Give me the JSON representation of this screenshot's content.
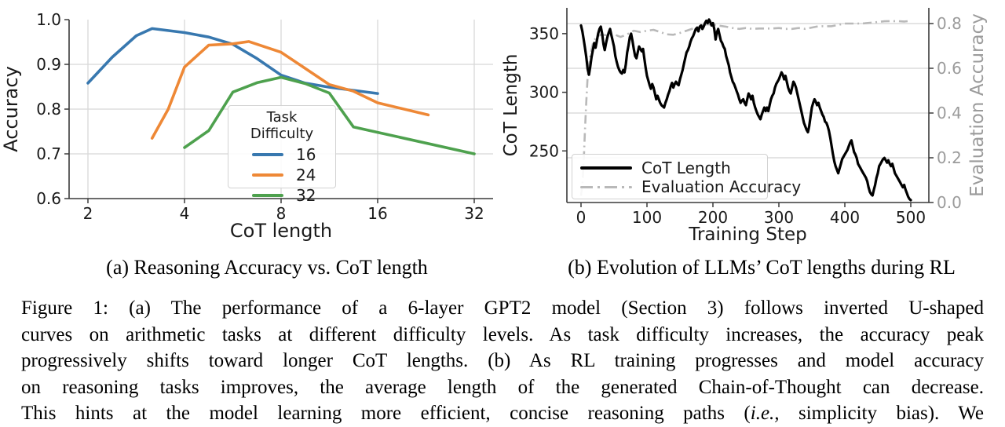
{
  "figure": {
    "subcaption_a": "(a) Reasoning Accuracy vs. CoT length",
    "subcaption_b": "(b) Evolution of LLMs’ CoT lengths during RL",
    "caption": {
      "line1": "Figure 1: (a) The performance of a 6-layer GPT2 model (Section 3) follows inverted U-shaped",
      "line2": "curves on arithmetic tasks at different difficulty levels. As task difficulty increases, the accuracy peak",
      "line3": "progressively shifts toward longer CoT lengths. (b) As RL training progresses and model accuracy",
      "line4": "on reasoning tasks improves, the average length of the generated Chain-of-Thought can decrease.",
      "line5a": "This hints at the model learning more efficient, concise reasoning paths (",
      "line5_italic": "i.e.,",
      "line5b": " simplicity bias). We"
    }
  },
  "colors": {
    "blue": "#3878af",
    "orange": "#ee8836",
    "green": "#4ea14e",
    "black": "#000000",
    "gray_line": "#b9b9b9",
    "gray_text": "#9b9b9b",
    "grid": "#d8d8d8",
    "spine": "#3a3a3a"
  },
  "chart_data": [
    {
      "id": "reasoning-accuracy-vs-cot-length",
      "type": "line",
      "xlabel": "CoT length",
      "ylabel": "Accuracy",
      "x_scale": "log2",
      "x_ticks": [
        2,
        4,
        8,
        16,
        32
      ],
      "xlim": [
        1.7,
        36.8
      ],
      "y_ticks": [
        0.6,
        0.7,
        0.8,
        0.9,
        1.0
      ],
      "ylim": [
        0.6,
        1.0
      ],
      "grid": true,
      "legend": {
        "title": "Task Difficulty",
        "position": "lower center-right"
      },
      "series": [
        {
          "name": "16",
          "color": "#3878af",
          "x": [
            2,
            2.38,
            2.83,
            3.17,
            4,
            4.76,
            5.66,
            6.73,
            8,
            9.51,
            11.31,
            13.45,
            16
          ],
          "y": [
            0.858,
            0.916,
            0.964,
            0.98,
            0.971,
            0.961,
            0.945,
            0.913,
            0.876,
            0.858,
            0.849,
            0.842,
            0.835
          ]
        },
        {
          "name": "24",
          "color": "#ee8836",
          "x": [
            3.17,
            3.56,
            4,
            4.76,
            5.66,
            6.35,
            8,
            9.51,
            11.31,
            13.45,
            16,
            23
          ],
          "y": [
            0.735,
            0.8,
            0.894,
            0.943,
            0.946,
            0.951,
            0.927,
            0.891,
            0.855,
            0.84,
            0.814,
            0.787
          ]
        },
        {
          "name": "32",
          "color": "#4ea14e",
          "x": [
            4,
            4.76,
            5.66,
            6.73,
            8,
            9.51,
            11.31,
            13.45,
            16,
            32
          ],
          "y": [
            0.714,
            0.752,
            0.838,
            0.859,
            0.871,
            0.857,
            0.836,
            0.76,
            0.748,
            0.7
          ]
        }
      ]
    },
    {
      "id": "cot-length-during-rl",
      "type": "line",
      "xlabel": "Training Step",
      "ylabel_left": "CoT Length",
      "ylabel_right": "Evaluation Accuracy",
      "x_ticks": [
        0,
        100,
        200,
        300,
        400,
        500
      ],
      "xlim": [
        -21,
        527
      ],
      "y_ticks_left": [
        250,
        300,
        350
      ],
      "ylim_left": [
        206,
        372
      ],
      "y_ticks_right": [
        0.0,
        0.2,
        0.4,
        0.6,
        0.8
      ],
      "ylim_right": [
        0.0,
        0.87
      ],
      "grid": "horizontal (right-axis ticks)",
      "legend": {
        "position": "lower left"
      },
      "series": [
        {
          "name": "CoT Length",
          "axis": "left",
          "style": "solid",
          "color": "#000000",
          "x_start": 0,
          "x_step": 2,
          "values": [
            357,
            352,
            345,
            338,
            330,
            320,
            315,
            322,
            330,
            336,
            342,
            338,
            344,
            350,
            354,
            356,
            350,
            341,
            336,
            342,
            347,
            351,
            354,
            349,
            344,
            339,
            331,
            326,
            322,
            319,
            317,
            316,
            319,
            317,
            324,
            334,
            340,
            347,
            350,
            344,
            337,
            331,
            329,
            334,
            339,
            337,
            335,
            337,
            329,
            321,
            314,
            310,
            306,
            303,
            307,
            304,
            299,
            294,
            297,
            294,
            291,
            289,
            288,
            287,
            291,
            294,
            298,
            301,
            305,
            308,
            304,
            307,
            309,
            307,
            306,
            311,
            315,
            319,
            324,
            329,
            334,
            336,
            339,
            343,
            346,
            348,
            351,
            354,
            355,
            352,
            356,
            357,
            354,
            356,
            359,
            361,
            359,
            362,
            360,
            357,
            359,
            354,
            345,
            351,
            354,
            349,
            344,
            342,
            339,
            337,
            331,
            327,
            323,
            317,
            313,
            309,
            307,
            304,
            301,
            298,
            294,
            291,
            293,
            294,
            291,
            289,
            294,
            299,
            297,
            294,
            297,
            291,
            287,
            284,
            281,
            279,
            277,
            281,
            284,
            287,
            284,
            287,
            284,
            289,
            294,
            297,
            299,
            304,
            307,
            309,
            311,
            314,
            317,
            315,
            311,
            314,
            309,
            304,
            301,
            299,
            304,
            309,
            307,
            304,
            299,
            294,
            289,
            284,
            279,
            274,
            271,
            268,
            266,
            271,
            279,
            287,
            291,
            294,
            292,
            289,
            291,
            287,
            284,
            281,
            279,
            275,
            274,
            271,
            267,
            261,
            254,
            247,
            241,
            237,
            234,
            231,
            235,
            239,
            243,
            245,
            247,
            249,
            251,
            254,
            257,
            259,
            254,
            249,
            247,
            244,
            239,
            237,
            235,
            233,
            231,
            229,
            227,
            224,
            219,
            215,
            213,
            212,
            217,
            221,
            227,
            231,
            237,
            239,
            241,
            243,
            244,
            242,
            240,
            242,
            239,
            237,
            239,
            235,
            231,
            229,
            227,
            225,
            223,
            221,
            219,
            221,
            217,
            214,
            211,
            209,
            208
          ]
        },
        {
          "name": "Evaluation Accuracy",
          "axis": "right",
          "style": "dashdot",
          "color": "#b9b9b9",
          "x": [
            0,
            2,
            4,
            6,
            8,
            10,
            14,
            18,
            22,
            26,
            30,
            40,
            50,
            60,
            70,
            80,
            90,
            100,
            110,
            120,
            130,
            140,
            150,
            160,
            170,
            180,
            190,
            200,
            210,
            220,
            230,
            240,
            250,
            260,
            270,
            280,
            290,
            300,
            310,
            320,
            330,
            340,
            350,
            360,
            370,
            380,
            390,
            400,
            410,
            420,
            430,
            440,
            450,
            460,
            470,
            480,
            490,
            500
          ],
          "y": [
            0.03,
            0.08,
            0.18,
            0.32,
            0.45,
            0.56,
            0.66,
            0.71,
            0.735,
            0.745,
            0.75,
            0.748,
            0.752,
            0.74,
            0.752,
            0.768,
            0.762,
            0.768,
            0.772,
            0.762,
            0.752,
            0.75,
            0.758,
            0.768,
            0.778,
            0.788,
            0.796,
            0.796,
            0.79,
            0.786,
            0.78,
            0.776,
            0.78,
            0.776,
            0.778,
            0.778,
            0.778,
            0.78,
            0.776,
            0.776,
            0.78,
            0.776,
            0.782,
            0.788,
            0.788,
            0.788,
            0.794,
            0.8,
            0.8,
            0.8,
            0.801,
            0.804,
            0.807,
            0.81,
            0.811,
            0.811,
            0.809,
            0.812
          ]
        }
      ]
    }
  ]
}
